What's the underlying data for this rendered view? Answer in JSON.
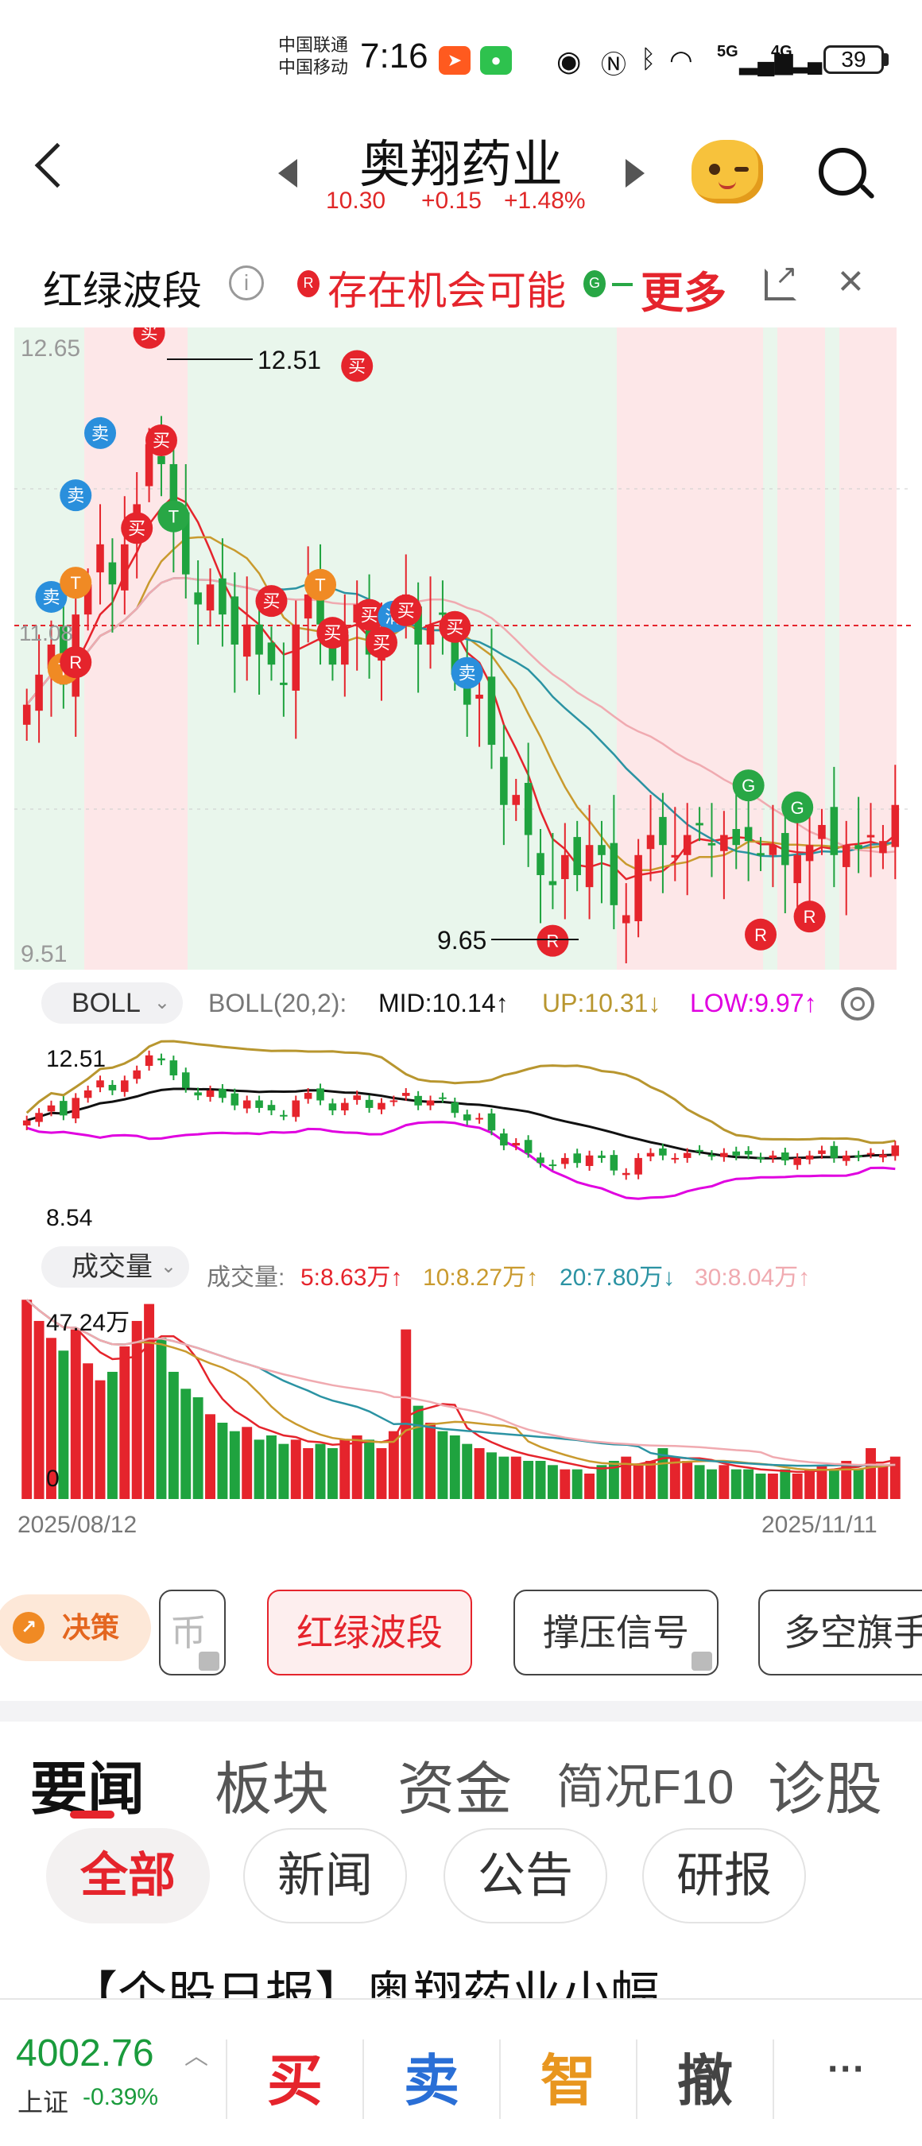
{
  "status_bar": {
    "carrier1": "中国联通",
    "carrier2": "中国移动",
    "time": "7:16",
    "network1": "5G",
    "network2": "4G",
    "battery": "39"
  },
  "header": {
    "title": "奥翔药业",
    "price": "10.30",
    "change": "+0.15",
    "change_pct": "+1.48%"
  },
  "indicator": {
    "name": "红绿波段",
    "info_glyph": "i",
    "r_label": "R",
    "message": "存在机会可能",
    "g_label": "G",
    "more_label": "更多"
  },
  "main_chart": {
    "y_max_label": "12.65",
    "y_min_label": "9.51",
    "y_mid_label": "11.08",
    "high_label": "12.51",
    "low_label": "9.65"
  },
  "boll": {
    "selector": "BOLL",
    "params": "BOLL(20,2):",
    "mid": "MID:10.14↑",
    "up": "UP:10.31↓",
    "low": "LOW:9.97↑",
    "y_max_label": "12.51",
    "y_min_label": "8.54"
  },
  "volume": {
    "selector": "成交量",
    "prefix": "成交量:",
    "ma5": "5:8.63万↑",
    "ma10": "10:8.27万↑",
    "ma20": "20:7.80万↓",
    "ma30": "30:8.04万↑",
    "y_max_label": "47.24万",
    "y_min_label": "0"
  },
  "dates": {
    "start": "2025/08/12",
    "end": "2025/11/11"
  },
  "strategy": {
    "decision": "决策",
    "partial": "币",
    "tabs": [
      "红绿波段",
      "撑压信号",
      "多空旗手"
    ]
  },
  "news_tabs": [
    "要闻",
    "板块",
    "资金",
    "简况F10",
    "诊股"
  ],
  "news_filters": [
    "全部",
    "新闻",
    "公告",
    "研报"
  ],
  "headline": "【个股日报】奥翔药业小幅",
  "bottom": {
    "index_value": "4002.76",
    "index_name": "上证",
    "index_change": "-0.39%",
    "buy": "买",
    "sell": "卖",
    "smart": "智",
    "cancel": "撤",
    "more": "···"
  },
  "colors": {
    "up_red": "#e5242c",
    "down_green": "#1fa33f",
    "ma_yellow": "#c99a2e",
    "ma_teal": "#2b93a3",
    "ma_pink": "#f0aab0",
    "boll_upper": "#b8962f",
    "boll_lower": "#e000e0"
  },
  "chart_data": [
    {
      "type": "candlestick",
      "title": "",
      "ylim": [
        9.51,
        12.65
      ],
      "x_start": "2025/08/12",
      "x_end": "2025/11/11",
      "reference_price": 11.08,
      "annotations": [
        {
          "label": "12.51",
          "type": "high"
        },
        {
          "label": "9.65",
          "type": "low"
        }
      ],
      "close": [
        10.8,
        10.95,
        11.1,
        10.9,
        11.25,
        11.4,
        11.6,
        11.4,
        11.6,
        11.8,
        12.1,
        12.0,
        11.7,
        11.45,
        11.3,
        11.4,
        11.25,
        11.1,
        11.2,
        11.05,
        11.0,
        10.9,
        11.2,
        11.35,
        11.2,
        11.0,
        11.15,
        11.3,
        11.05,
        11.15,
        11.2,
        11.35,
        11.1,
        11.2,
        11.25,
        10.95,
        10.8,
        10.85,
        10.6,
        10.3,
        10.35,
        10.15,
        9.95,
        9.9,
        10.05,
        9.95,
        10.1,
        10.05,
        9.8,
        9.75,
        10.05,
        10.15,
        10.1,
        10.05,
        10.15,
        10.2,
        10.1,
        10.15,
        10.1,
        10.12,
        10.05,
        10.1,
        10.0,
        10.05,
        10.1,
        10.2,
        10.05,
        10.1,
        10.08,
        10.15,
        10.12,
        10.3
      ]
    },
    {
      "type": "line",
      "title": "",
      "ylim": [
        8.54,
        12.51
      ],
      "series": [
        {
          "name": "MID",
          "last": 10.14
        },
        {
          "name": "UP",
          "last": 10.31
        },
        {
          "name": "LOW",
          "last": 9.97
        }
      ]
    },
    {
      "type": "bar",
      "title": "",
      "ylim": [
        0,
        47.24
      ],
      "unit": "万",
      "values": [
        47,
        42,
        38,
        35,
        40,
        32,
        28,
        30,
        36,
        42,
        46,
        38,
        30,
        26,
        24,
        20,
        18,
        16,
        17,
        14,
        15,
        13,
        14,
        12,
        13,
        12,
        14,
        15,
        14,
        12,
        16,
        40,
        22,
        18,
        16,
        15,
        13,
        12,
        11,
        10,
        10,
        9,
        9,
        8,
        7,
        7,
        6,
        8,
        9,
        10,
        8,
        9,
        12,
        10,
        9,
        8,
        7,
        8,
        7,
        7,
        6,
        6,
        7,
        6,
        7,
        8,
        7,
        9,
        7,
        12,
        8,
        10
      ],
      "series": [
        {
          "name": "5",
          "last": 8.63
        },
        {
          "name": "10",
          "last": 8.27
        },
        {
          "name": "20",
          "last": 7.8
        },
        {
          "name": "30",
          "last": 8.04
        }
      ]
    }
  ]
}
